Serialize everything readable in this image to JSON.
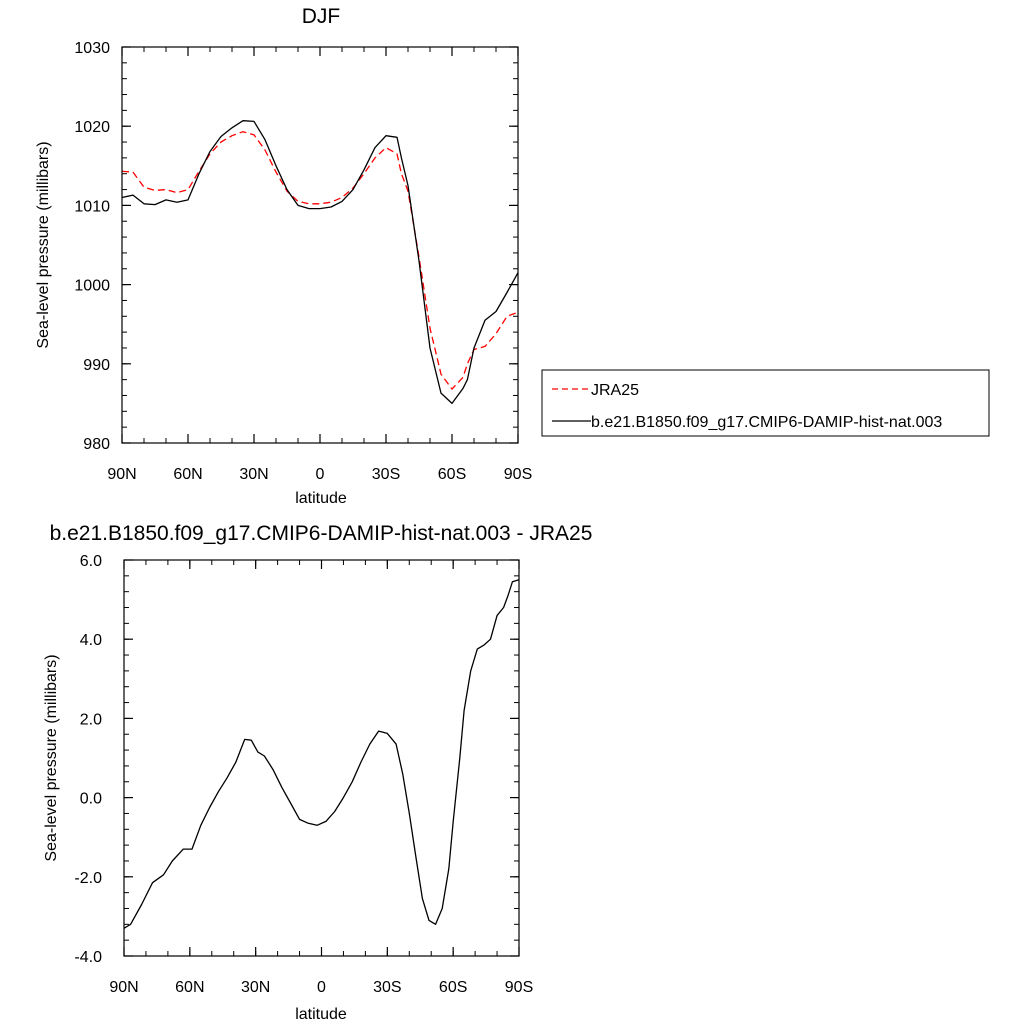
{
  "chart_data": [
    {
      "type": "line",
      "title": "DJF",
      "xlabel": "latitude",
      "ylabel": "Sea-level pressure (millibars)",
      "xlim": [
        -90,
        90
      ],
      "ylim": [
        980,
        1030
      ],
      "x_tick_values": [
        -90,
        -60,
        -30,
        0,
        30,
        60,
        90
      ],
      "x_tick_labels": [
        "90N",
        "60N",
        "30N",
        "0",
        "30S",
        "60S",
        "90S"
      ],
      "y_tick_values": [
        980,
        990,
        1000,
        1010,
        1020,
        1030
      ],
      "y_tick_labels": [
        "980",
        "990",
        "1000",
        "1010",
        "1020",
        "1030"
      ],
      "grid": false,
      "legend_position": "right",
      "series": [
        {
          "name": "JRA25",
          "color": "#ff0000",
          "dash": "dashed",
          "x": [
            -90,
            -85,
            -80,
            -75,
            -70,
            -65,
            -60,
            -55,
            -50,
            -45,
            -40,
            -35,
            -30,
            -25,
            -20,
            -15,
            -10,
            -5,
            0,
            5,
            10,
            15,
            20,
            25,
            30,
            35,
            37,
            40,
            45,
            50,
            55,
            60,
            65,
            67,
            70,
            75,
            80,
            85,
            90
          ],
          "values": [
            1014.3,
            1014.2,
            1012.3,
            1011.9,
            1012.0,
            1011.6,
            1012.0,
            1014.3,
            1016.5,
            1018.0,
            1018.8,
            1019.3,
            1018.9,
            1017.0,
            1014.2,
            1011.8,
            1010.5,
            1010.2,
            1010.2,
            1010.4,
            1011.0,
            1012.2,
            1014.0,
            1016.0,
            1017.3,
            1016.5,
            1014.0,
            1011.8,
            1003.5,
            994.5,
            988.7,
            986.8,
            988.3,
            990.0,
            991.8,
            992.2,
            993.8,
            996.0,
            996.5
          ]
        },
        {
          "name": "b.e21.B1850.f09_g17.CMIP6-DAMIP-hist-nat.003",
          "color": "#000000",
          "dash": "solid",
          "x": [
            -90,
            -85,
            -80,
            -75,
            -70,
            -65,
            -60,
            -55,
            -50,
            -45,
            -40,
            -35,
            -30,
            -25,
            -20,
            -15,
            -10,
            -5,
            0,
            5,
            10,
            15,
            20,
            25,
            30,
            35,
            37,
            40,
            45,
            50,
            55,
            60,
            65,
            67,
            70,
            75,
            80,
            85,
            90
          ],
          "values": [
            1011.0,
            1011.3,
            1010.2,
            1010.1,
            1010.7,
            1010.4,
            1010.7,
            1014.0,
            1016.8,
            1018.7,
            1019.8,
            1020.7,
            1020.6,
            1018.3,
            1015.0,
            1012.0,
            1010.0,
            1009.6,
            1009.6,
            1009.8,
            1010.5,
            1012.0,
            1014.5,
            1017.3,
            1018.8,
            1018.6,
            1016.0,
            1012.5,
            1003.0,
            992.0,
            986.3,
            985.0,
            986.9,
            988.0,
            992.0,
            995.5,
            996.6,
            999.0,
            1001.5
          ]
        }
      ]
    },
    {
      "type": "line",
      "title": "b.e21.B1850.f09_g17.CMIP6-DAMIP-hist-nat.003 - JRA25",
      "xlabel": "latitude",
      "ylabel": "Sea-level pressure (millibars)",
      "xlim": [
        -90,
        90
      ],
      "ylim": [
        -4,
        6
      ],
      "x_tick_values": [
        -90,
        -60,
        -30,
        0,
        30,
        60,
        90
      ],
      "x_tick_labels": [
        "90N",
        "60N",
        "30N",
        "0",
        "30S",
        "60S",
        "90S"
      ],
      "y_tick_values": [
        -4,
        -2,
        0,
        2,
        4,
        6
      ],
      "y_tick_labels": [
        "-4.0",
        "-2.0",
        "0.0",
        "2.0",
        "4.0",
        "6.0"
      ],
      "grid": false,
      "series": [
        {
          "color": "#000000",
          "dash": "solid",
          "x": [
            -90,
            -87,
            -82,
            -77,
            -72,
            -68,
            -63,
            -59,
            -55,
            -51,
            -47,
            -43,
            -39,
            -35,
            -32,
            -29,
            -26,
            -22,
            -18,
            -14,
            -10,
            -6,
            -2,
            2,
            6,
            10,
            14,
            18,
            22,
            26,
            30,
            34,
            37,
            40,
            43,
            46,
            49,
            52,
            55,
            58,
            60,
            63,
            65,
            68,
            71,
            74,
            77,
            80,
            83,
            85,
            87,
            90
          ],
          "values": [
            -3.3,
            -3.2,
            -2.7,
            -2.15,
            -1.95,
            -1.6,
            -1.3,
            -1.3,
            -0.7,
            -0.25,
            0.15,
            0.5,
            0.9,
            1.47,
            1.45,
            1.15,
            1.05,
            0.7,
            0.25,
            -0.15,
            -0.55,
            -0.65,
            -0.7,
            -0.6,
            -0.35,
            0.0,
            0.4,
            0.9,
            1.35,
            1.68,
            1.62,
            1.35,
            0.6,
            -0.4,
            -1.5,
            -2.55,
            -3.1,
            -3.2,
            -2.8,
            -1.8,
            -0.6,
            1.0,
            2.2,
            3.2,
            3.75,
            3.85,
            4.0,
            4.6,
            4.8,
            5.1,
            5.45,
            5.5
          ]
        }
      ]
    }
  ]
}
